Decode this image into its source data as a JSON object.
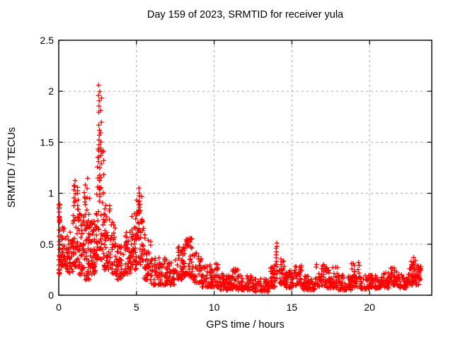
{
  "page": {
    "background": "#ffffff"
  },
  "chart_data": {
    "type": "scatter",
    "title": "Day 159 of 2023, SRMTID for receiver yula",
    "xlabel": "GPS time / hours",
    "ylabel": "SRMTID / TECUs",
    "xlim": [
      0,
      24
    ],
    "ylim": [
      0,
      2.5
    ],
    "xticks": {
      "values": [
        0,
        5,
        10,
        15,
        20
      ],
      "labels": [
        "0",
        "5",
        "10",
        "15",
        "20"
      ]
    },
    "yticks": {
      "values": [
        0,
        0.5,
        1,
        1.5,
        2,
        2.5
      ],
      "labels": [
        "0",
        "0.5",
        "1",
        "1.5",
        "2",
        "2.5"
      ]
    },
    "grid": {
      "show": true,
      "color": "#a8a8a8",
      "style": "dashed"
    },
    "axis_color": "#000000",
    "marker": {
      "shape": "plus",
      "color": "#ff0000",
      "size": 7
    },
    "seed": 20230159,
    "scatter_envelope_format": [
      "t_start_hours",
      "t_end_hours",
      "point_count",
      "y_min_TECUs",
      "y_max_TECUs"
    ],
    "scatter_envelope": [
      [
        0.0,
        0.08,
        30,
        0.2,
        0.92
      ],
      [
        0.08,
        0.5,
        42,
        0.28,
        0.68
      ],
      [
        0.5,
        0.9,
        40,
        0.22,
        0.62
      ],
      [
        0.9,
        1.25,
        45,
        0.28,
        1.1
      ],
      [
        1.25,
        1.65,
        45,
        0.2,
        0.85
      ],
      [
        1.65,
        2.0,
        45,
        0.15,
        1.0
      ],
      [
        2.0,
        2.4,
        50,
        0.2,
        0.8
      ],
      [
        2.4,
        2.9,
        60,
        0.35,
        1.45
      ],
      [
        2.9,
        3.3,
        45,
        0.25,
        0.9
      ],
      [
        3.3,
        3.75,
        40,
        0.2,
        0.75
      ],
      [
        3.75,
        4.2,
        35,
        0.15,
        0.5
      ],
      [
        4.2,
        4.65,
        40,
        0.2,
        0.62
      ],
      [
        4.65,
        5.0,
        40,
        0.25,
        0.8
      ],
      [
        5.0,
        5.45,
        52,
        0.3,
        1.02
      ],
      [
        5.45,
        5.95,
        40,
        0.15,
        0.6
      ],
      [
        5.95,
        6.5,
        36,
        0.1,
        0.42
      ],
      [
        6.5,
        7.0,
        36,
        0.1,
        0.38
      ],
      [
        7.0,
        7.5,
        36,
        0.1,
        0.32
      ],
      [
        7.5,
        8.0,
        40,
        0.15,
        0.48
      ],
      [
        8.0,
        8.6,
        55,
        0.18,
        0.56
      ],
      [
        8.6,
        9.2,
        40,
        0.12,
        0.42
      ],
      [
        9.2,
        9.8,
        36,
        0.08,
        0.3
      ],
      [
        9.8,
        10.35,
        40,
        0.08,
        0.32
      ],
      [
        10.35,
        11.0,
        42,
        0.05,
        0.22
      ],
      [
        11.0,
        11.55,
        40,
        0.06,
        0.26
      ],
      [
        11.55,
        12.5,
        55,
        0.05,
        0.2
      ],
      [
        12.5,
        13.55,
        60,
        0.03,
        0.16
      ],
      [
        13.55,
        13.95,
        30,
        0.08,
        0.3
      ],
      [
        14.15,
        14.6,
        36,
        0.1,
        0.36
      ],
      [
        14.6,
        15.2,
        42,
        0.07,
        0.26
      ],
      [
        15.2,
        15.65,
        30,
        0.08,
        0.3
      ],
      [
        15.65,
        16.5,
        52,
        0.05,
        0.2
      ],
      [
        16.5,
        17.25,
        46,
        0.08,
        0.32
      ],
      [
        17.25,
        18.0,
        46,
        0.07,
        0.28
      ],
      [
        18.0,
        18.8,
        46,
        0.05,
        0.2
      ],
      [
        18.8,
        19.4,
        40,
        0.08,
        0.33
      ],
      [
        19.4,
        20.5,
        58,
        0.06,
        0.2
      ],
      [
        20.5,
        21.3,
        46,
        0.07,
        0.22
      ],
      [
        21.3,
        21.9,
        40,
        0.09,
        0.28
      ],
      [
        21.9,
        22.4,
        36,
        0.07,
        0.2
      ],
      [
        22.4,
        23.0,
        48,
        0.1,
        0.36
      ],
      [
        23.0,
        23.3,
        26,
        0.1,
        0.3
      ]
    ],
    "spike_columns": [
      {
        "t": 1.05,
        "ys": [
          1.12,
          1.06,
          0.99,
          0.93
        ]
      },
      {
        "t": 1.68,
        "ys": [
          1.08,
          1.01,
          0.94,
          0.88
        ]
      },
      {
        "t": 1.86,
        "ys": [
          1.15,
          1.05,
          0.96
        ]
      },
      {
        "t": 2.6,
        "ys": [
          2.05,
          2.0,
          1.96,
          1.9,
          1.85,
          1.8,
          1.67,
          1.62,
          1.57,
          1.52,
          1.47,
          1.42,
          1.36,
          1.3,
          1.24,
          1.18,
          1.12,
          1.06
        ]
      },
      {
        "t": 2.72,
        "ys": [
          1.93,
          1.82,
          1.7,
          1.6,
          1.5,
          1.4,
          1.28,
          1.16,
          1.05
        ]
      },
      {
        "t": 5.18,
        "ys": [
          1.04,
          0.98,
          0.92,
          0.87
        ]
      },
      {
        "t": 8.25,
        "ys": [
          0.55,
          0.52,
          0.49
        ]
      },
      {
        "t": 14.0,
        "ys": [
          0.52,
          0.49,
          0.46,
          0.43,
          0.4,
          0.37,
          0.34,
          0.31,
          0.28,
          0.24,
          0.2,
          0.16
        ]
      },
      {
        "t": 22.85,
        "ys": [
          0.36,
          0.33,
          0.3
        ]
      }
    ]
  }
}
